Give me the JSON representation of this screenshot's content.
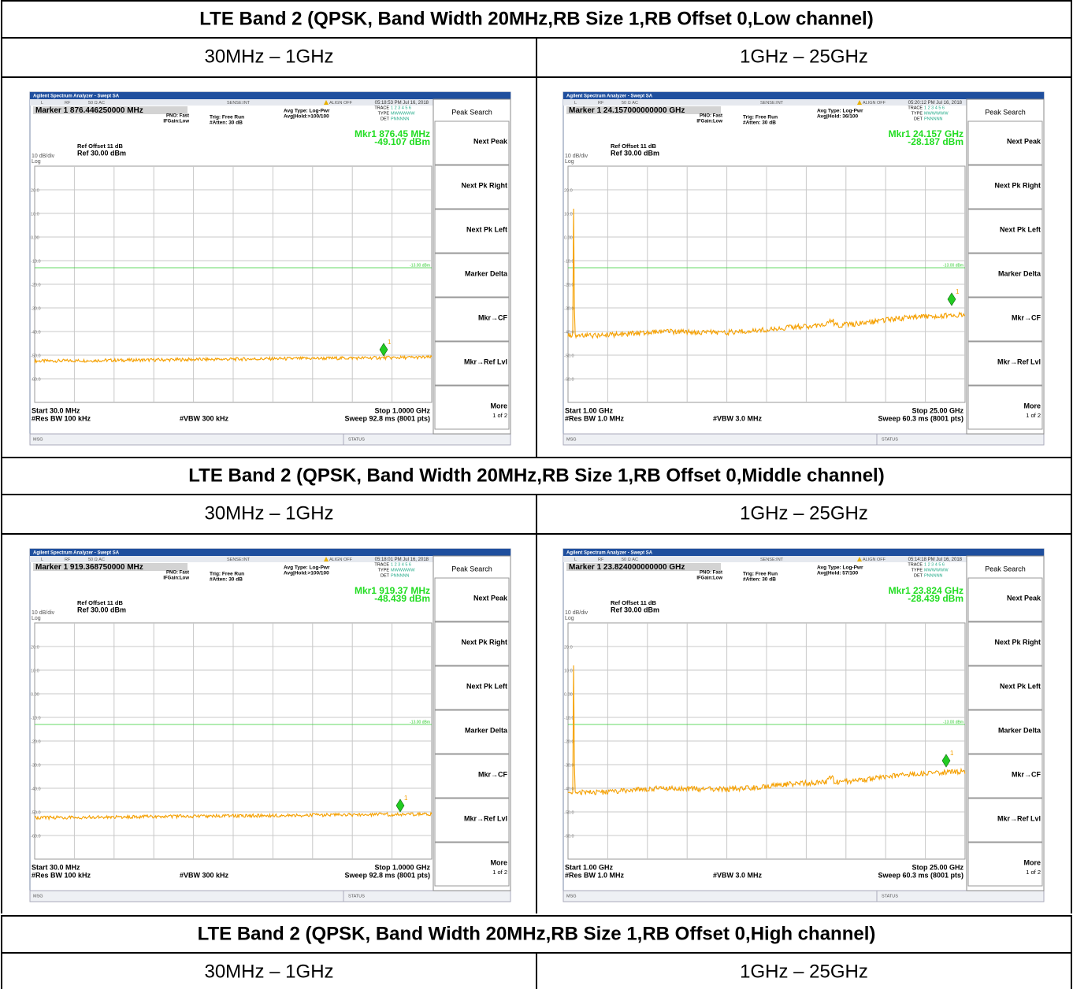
{
  "analyzer": {
    "app_title": "Agilent Spectrum Analyzer - Swept SA",
    "status": [
      "L",
      "RF",
      "50 Ω AC",
      "SENSE:INT",
      "ALIGN OFF"
    ],
    "pno": "PNO: Fast",
    "ifgain": "IFGain:Low",
    "trig": "Trig: Free Run",
    "atten": "#Atten: 30 dB",
    "avg_type": "Avg Type: Log-Pwr",
    "trace": "TRACE",
    "trace_nums": "1 2 3 4 5 6",
    "type": "TYPE",
    "type_vals": "MWWWWW",
    "det": "DET",
    "det_vals": "PNNNNN",
    "ref_offset": "Ref Offset 11 dB",
    "scale": "10 dB/div",
    "ref": "Ref 30.00 dBm",
    "log": "Log",
    "y_ticks": [
      "20.0",
      "10.0",
      "0.00",
      "-10.0",
      "-20.0",
      "-30.0",
      "-40.0",
      "-50.0",
      "-60.0"
    ],
    "limit_label": "-13.00 dBm",
    "marker_num": "1",
    "msg": "MSG",
    "status_label": "STATUS",
    "softkey_header": "Peak Search",
    "softkeys": [
      "Next Peak",
      "Next Pk Right",
      "Next Pk Left",
      "Marker Delta",
      "Mkr→CF",
      "Mkr→Ref Lvl",
      "More"
    ],
    "softkey_page": "1 of 2"
  },
  "sections": [
    {
      "title": "LTE Band 2 (QPSK, Band Width 20MHz,RB Size 1,RB Offset 0,Low channel)",
      "ranges": [
        "30MHz – 1GHz",
        "1GHz – 25GHz"
      ],
      "screens": [
        {
          "time": "05:18:53 PM Jul 16, 2018",
          "marker": "Marker 1 876.446250000 MHz",
          "avg_hold": "Avg|Hold:>100/100",
          "mkr_freq": "Mkr1 876.45 MHz",
          "mkr_level": "-49.107 dBm",
          "start": "Start 30.0 MHz",
          "stop": "Stop 1.0000 GHz",
          "rbw": "#Res BW 100 kHz",
          "vbw": "#VBW 300 kHz",
          "sweep": "Sweep 92.8 ms (8001 pts)"
        },
        {
          "time": "05:20:12 PM Jul 16, 2018",
          "marker": "Marker 1 24.157000000000 GHz",
          "avg_hold": "Avg|Hold: 36/100",
          "mkr_freq": "Mkr1 24.157 GHz",
          "mkr_level": "-28.187 dBm",
          "start": "Start 1.00 GHz",
          "stop": "Stop 25.00 GHz",
          "rbw": "#Res BW 1.0 MHz",
          "vbw": "#VBW 3.0 MHz",
          "sweep": "Sweep 60.3 ms (8001 pts)"
        }
      ]
    },
    {
      "title": "LTE Band 2 (QPSK, Band Width 20MHz,RB Size 1,RB Offset 0,Middle channel)",
      "ranges": [
        "30MHz – 1GHz",
        "1GHz – 25GHz"
      ],
      "screens": [
        {
          "time": "05:18:01 PM Jul 16, 2018",
          "marker": "Marker 1 919.368750000 MHz",
          "avg_hold": "Avg|Hold:>100/100",
          "mkr_freq": "Mkr1 919.37 MHz",
          "mkr_level": "-48.439 dBm",
          "start": "Start 30.0 MHz",
          "stop": "Stop 1.0000 GHz",
          "rbw": "#Res BW 100 kHz",
          "vbw": "#VBW 300 kHz",
          "sweep": "Sweep 92.8 ms (8001 pts)"
        },
        {
          "time": "05:14:18 PM Jul 16, 2018",
          "marker": "Marker 1 23.824000000000 GHz",
          "avg_hold": "Avg|Hold: 57/100",
          "mkr_freq": "Mkr1 23.824 GHz",
          "mkr_level": "-28.439 dBm",
          "start": "Start 1.00 GHz",
          "stop": "Stop 25.00 GHz",
          "rbw": "#Res BW 1.0 MHz",
          "vbw": "#VBW 3.0 MHz",
          "sweep": "Sweep 60.3 ms (8001 pts)"
        }
      ]
    },
    {
      "title": "LTE Band 2 (QPSK, Band Width 20MHz,RB Size 1,RB Offset 0,High channel)",
      "ranges": [
        "30MHz – 1GHz",
        "1GHz – 25GHz"
      ]
    }
  ]
}
